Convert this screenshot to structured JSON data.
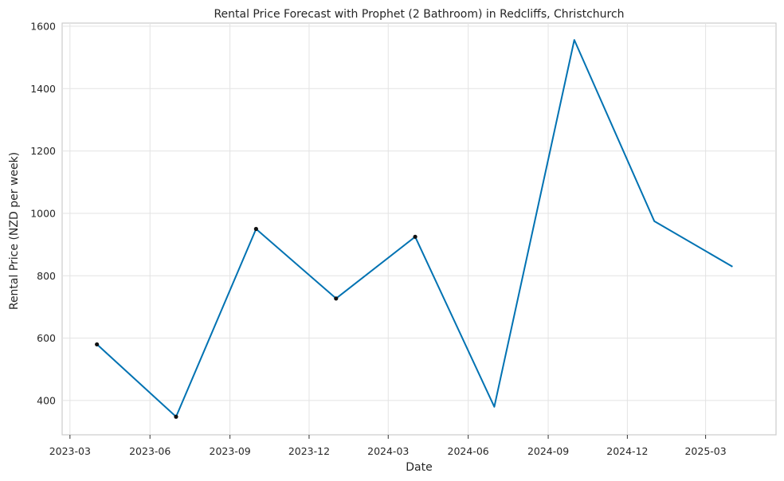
{
  "chart_data": {
    "type": "line",
    "title": "Rental Price Forecast with Prophet (2 Bathroom) in Redcliffs, Christchurch",
    "xlabel": "Date",
    "ylabel": "Rental Price (NZD per week)",
    "x_ticks": [
      "2023-03",
      "2023-06",
      "2023-09",
      "2023-12",
      "2024-03",
      "2024-06",
      "2024-09",
      "2024-12",
      "2025-03"
    ],
    "y_ticks": [
      400,
      600,
      800,
      1000,
      1200,
      1400,
      1600
    ],
    "xlim": [
      "2023-02-20",
      "2025-05-21"
    ],
    "ylim": [
      290,
      1610
    ],
    "grid": true,
    "series": [
      {
        "color": "#0072b2",
        "x": [
          "2023-04-01",
          "2023-07-01",
          "2023-10-01",
          "2024-01-01",
          "2024-04-01",
          "2024-07-01",
          "2024-10-01",
          "2025-01-01",
          "2025-04-01"
        ],
        "values": [
          580,
          348,
          950,
          727,
          925,
          380,
          1556,
          975,
          829
        ]
      }
    ],
    "observed_points": {
      "color": "#111111",
      "x": [
        "2023-04-01",
        "2023-07-01",
        "2023-10-01",
        "2024-01-01",
        "2024-04-01"
      ],
      "values": [
        580,
        348,
        950,
        727,
        925
      ]
    }
  }
}
